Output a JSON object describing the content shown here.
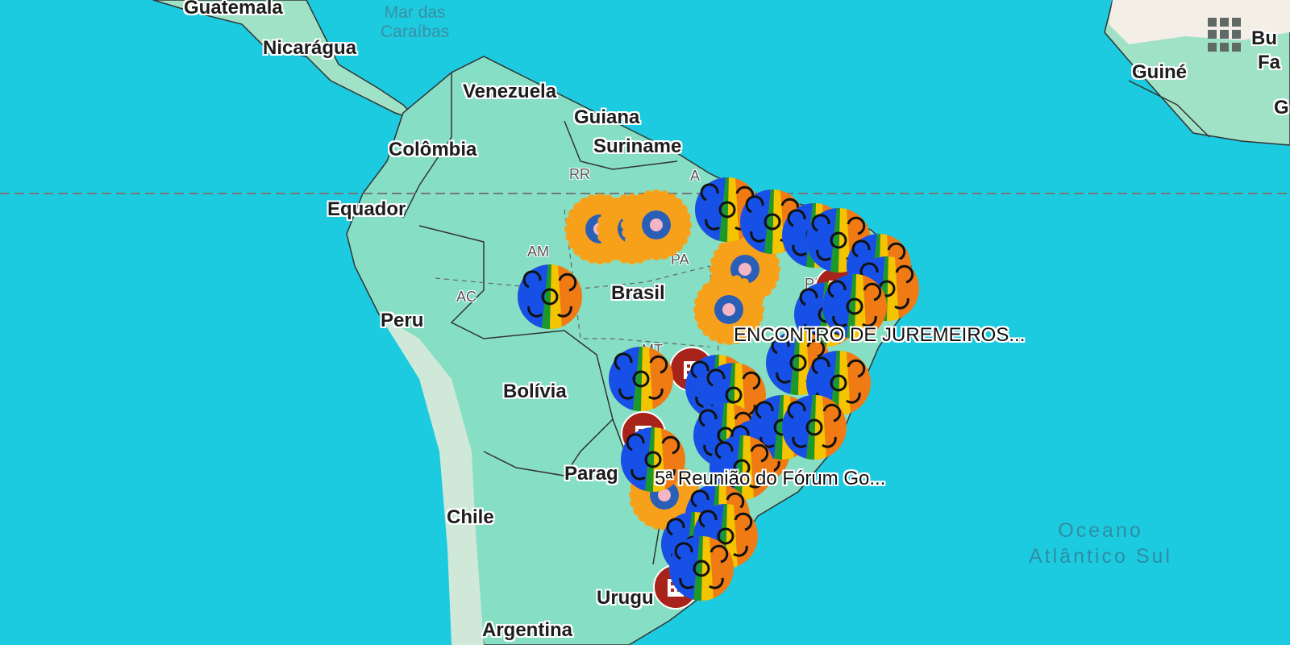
{
  "map": {
    "colors": {
      "ocean": "#1ccbe0",
      "land": "#86dfc4",
      "land_dry": "#f3eee6",
      "border": "#333333"
    },
    "places": {
      "guatemala": "Guatemala",
      "nicaragua": "Nicarágua",
      "venezuela": "Venezuela",
      "guiana": "Guiana",
      "suriname": "Suriname",
      "colombia": "Colômbia",
      "equador": "Equador",
      "brasil": "Brasil",
      "peru": "Peru",
      "bolivia": "Bolívia",
      "paraguai": "Parag",
      "chile": "Chile",
      "uruguai": "Urugu",
      "argentina": "Argentina",
      "guine": "Guiné",
      "burkina_1": "Bu",
      "burkina_2": "Fa",
      "g": "G"
    },
    "states": {
      "rr": "RR",
      "am": "AM",
      "pa": "PA",
      "ac": "AC",
      "pi": "PI",
      "mt": "MT",
      "a": "A"
    },
    "seas": {
      "caribe_1": "Mar das",
      "caribe_2": "Caraíbas",
      "atlantico_1": "Oceano",
      "atlantico_2": "Atlântico Sul"
    },
    "marker_labels": {
      "juremeiros": "ENCONTRO DE JUREMEIROS...",
      "forum": "5ª Reunião do Fórum Go..."
    },
    "marker_types": {
      "rainbow": "rainbow-face-icon",
      "sun": "sun-gear-icon",
      "building": "red-building-icon"
    },
    "controls": {
      "grid": "apps-grid-icon"
    }
  }
}
